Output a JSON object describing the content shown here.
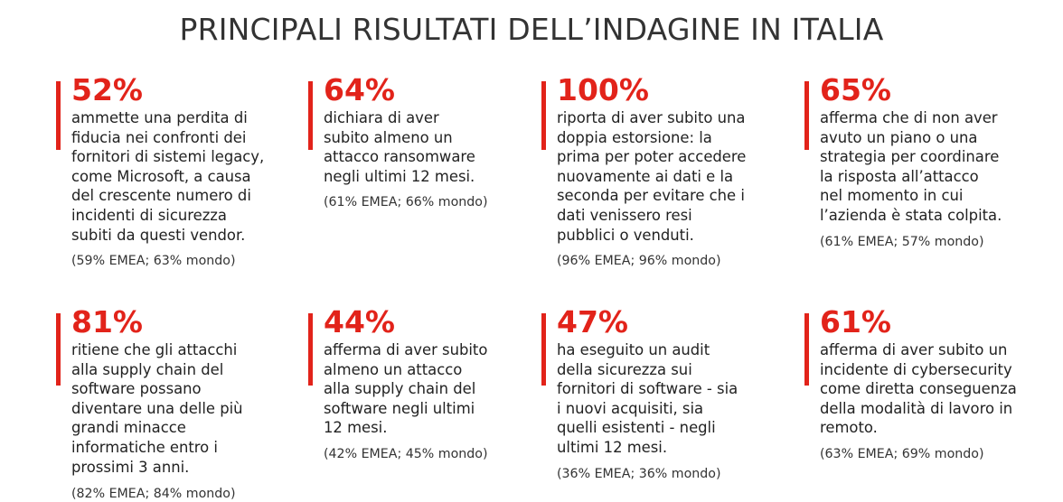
{
  "title": "PRINCIPALI RISULTATI DELL’INDAGINE IN ITALIA",
  "accent_color": "#e2231a",
  "cards": [
    {
      "percent": "52%",
      "description": "ammette una perdita di\nfiducia nei confronti dei\nfornitori di sistemi legacy,\ncome Microsoft, a causa\ndel crescente numero di\nincidenti di sicurezza\nsubiti da questi vendor.",
      "comparison": "(59% EMEA; 63% mondo)"
    },
    {
      "percent": "64%",
      "description": "dichiara di aver\nsubito almeno un\nattacco ransomware\nnegli ultimi 12 mesi.",
      "comparison": "(61% EMEA; 66% mondo)"
    },
    {
      "percent": "100%",
      "description": "riporta di aver subito una\ndoppia estorsione: la\nprima per poter accedere\nnuovamente ai dati e la\nseconda per evitare che i\ndati venissero resi\npubblici o venduti.",
      "comparison": "(96% EMEA; 96% mondo)"
    },
    {
      "percent": "65%",
      "description": "afferma che di non aver\navuto un piano o una\nstrategia per coordinare\nla risposta all’attacco\nnel momento in cui\nl’azienda è stata colpita.",
      "comparison": "(61% EMEA; 57% mondo)"
    },
    {
      "percent": "81%",
      "description": "ritiene che gli attacchi\nalla supply chain del\nsoftware possano\ndiventare una delle più\ngrandi minacce\ninformatiche entro i\nprossimi 3 anni.",
      "comparison": "(82% EMEA; 84% mondo)"
    },
    {
      "percent": "44%",
      "description": "afferma di aver subito\nalmeno un attacco\nalla supply chain del\nsoftware negli ultimi\n12 mesi.",
      "comparison": "(42% EMEA; 45% mondo)"
    },
    {
      "percent": "47%",
      "description": "ha eseguito un audit\ndella sicurezza sui\nfornitori di software - sia\ni nuovi acquisiti, sia\nquelli esistenti - negli\nultimi 12 mesi.",
      "comparison": "(36% EMEA; 36% mondo)"
    },
    {
      "percent": "61%",
      "description": "afferma di aver subito un\nincidente di cybersecurity\ncome diretta conseguenza\ndella modalità di lavoro in\nremoto.",
      "comparison": "(63% EMEA; 69% mondo)"
    }
  ]
}
